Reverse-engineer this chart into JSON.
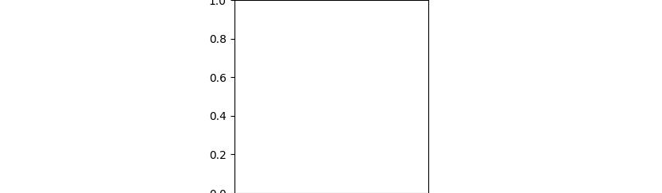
{
  "background_light": "#d0d0d0",
  "background_white": "#ffffff",
  "checker_size": 20,
  "figsize": [
    8.3,
    2.43
  ],
  "dpi": 100,
  "black": "#1a1a1a",
  "red": "#cc0000",
  "lw": 1.3
}
